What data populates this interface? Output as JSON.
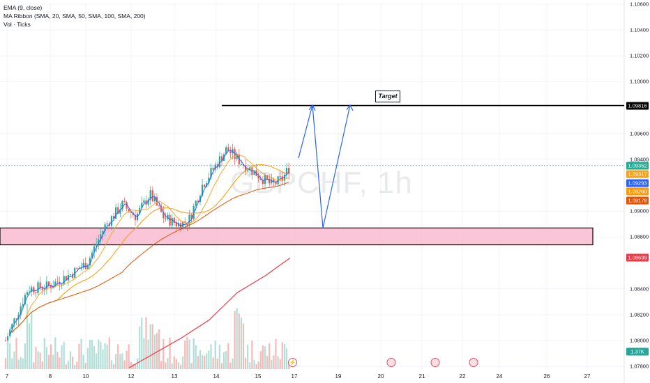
{
  "indicators": {
    "ema": "EMA (9, close)",
    "ribbon": "MA Ribbon (SMA, 20, SMA, 50, SMA, 100, SMA, 200)",
    "vol": "Vol · Ticks"
  },
  "watermark": "GBPCHF, 1h",
  "annotation": {
    "target_label": "Target",
    "target_price": 1.09816
  },
  "price_tags": [
    {
      "value": "1.09816",
      "bg": "#000000"
    },
    {
      "value": "1.09352",
      "bg": "#22ab94"
    },
    {
      "value": "1.09317",
      "bg": "#f7a21b"
    },
    {
      "value": "1.09293",
      "bg": "#2962ff"
    },
    {
      "value": "1.09260",
      "bg": "#ff9800"
    },
    {
      "value": "1.09178",
      "bg": "#e65100"
    },
    {
      "value": "1.08639",
      "bg": "#f23645"
    },
    {
      "value": "1.37K",
      "bg": "#26a69a"
    }
  ],
  "chart_data": {
    "type": "candlestick",
    "symbol": "GBPCHF",
    "timeframe": "1h",
    "ylim": [
      1.0778,
      1.1061
    ],
    "y_ticks": [
      "1.10600",
      "1.10400",
      "1.10200",
      "1.10000",
      "1.09600",
      "1.09400",
      "1.09000",
      "1.08800",
      "1.08400",
      "1.08200",
      "1.08000",
      "1.07800"
    ],
    "x_ticks": [
      "7",
      "8",
      "10",
      "12",
      "13",
      "14",
      "15",
      "17",
      "19",
      "20",
      "21",
      "22",
      "24",
      "26",
      "27"
    ],
    "support_zone": [
      1.0874,
      1.0887
    ],
    "projection_path": [
      1.0941,
      1.0982,
      1.0887,
      1.0982
    ],
    "ma_last_values": {
      "ema9": 1.09317,
      "sma20": 1.09293,
      "sma50": 1.0926,
      "sma100": 1.09178,
      "sma200": 1.08639
    },
    "last_price": 1.09352,
    "last_volume": "1.37K",
    "colors": {
      "up": "#26a69a",
      "down": "#ef5350",
      "zone": "#f8bbd0",
      "ema9": "#2962ff",
      "sma20": "#f9a825",
      "sma50": "#ff9800",
      "sma100": "#e65100",
      "sma200": "#f23645",
      "projection": "#2962ff"
    }
  }
}
